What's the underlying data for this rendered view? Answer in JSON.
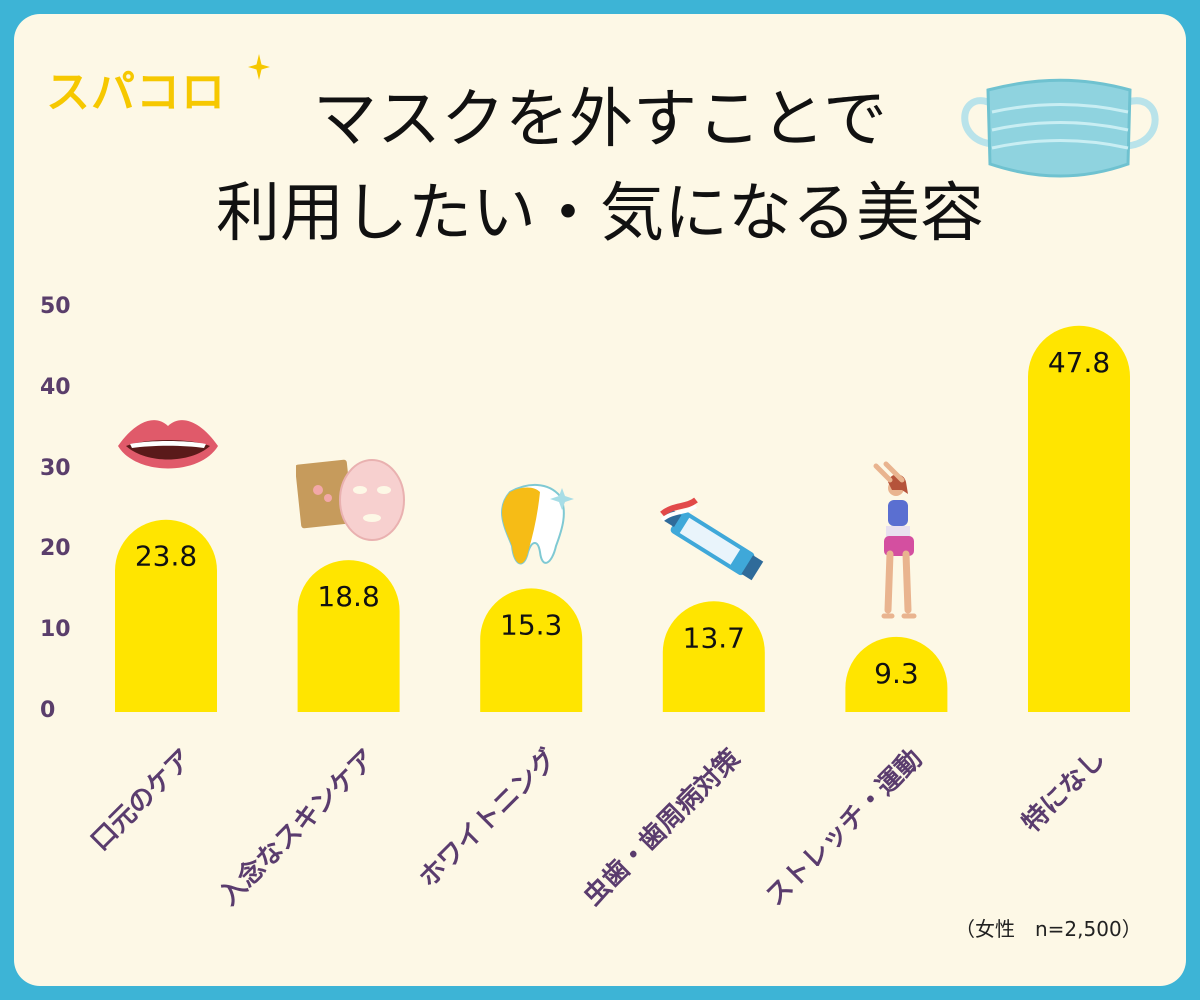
{
  "logo": {
    "text": "スパコロ"
  },
  "title_lines": [
    "マスクを外すことで",
    "利用したい・気になる美容"
  ],
  "note": "（女性　n=2,500）",
  "icons": [
    "sparkle-icon",
    "face-mask-icon",
    "lips-icon",
    "sheet-mask-icon",
    "tooth-icon",
    "toothpaste-icon",
    "stretching-woman-icon"
  ],
  "colors": {
    "bar": "#ffe500",
    "background": "#fdf8e6",
    "frame": "#3db4d6",
    "axis_text": "#5a3e6b",
    "logo": "#f6c800"
  },
  "chart_data": {
    "type": "bar",
    "categories": [
      "口元のケア",
      "入念なスキンケア",
      "ホワイトニング",
      "虫歯・歯周病対策",
      "ストレッチ・運動",
      "特になし"
    ],
    "values": [
      23.8,
      18.8,
      15.3,
      13.7,
      9.3,
      47.8
    ],
    "data_labels": [
      "23.8",
      "18.8",
      "15.3",
      "13.7",
      "9.3",
      "47.8"
    ],
    "yticks": [
      "0",
      "10",
      "20",
      "30",
      "40",
      "50"
    ],
    "ylim": [
      0,
      50
    ],
    "grid": false,
    "legend": "none"
  }
}
